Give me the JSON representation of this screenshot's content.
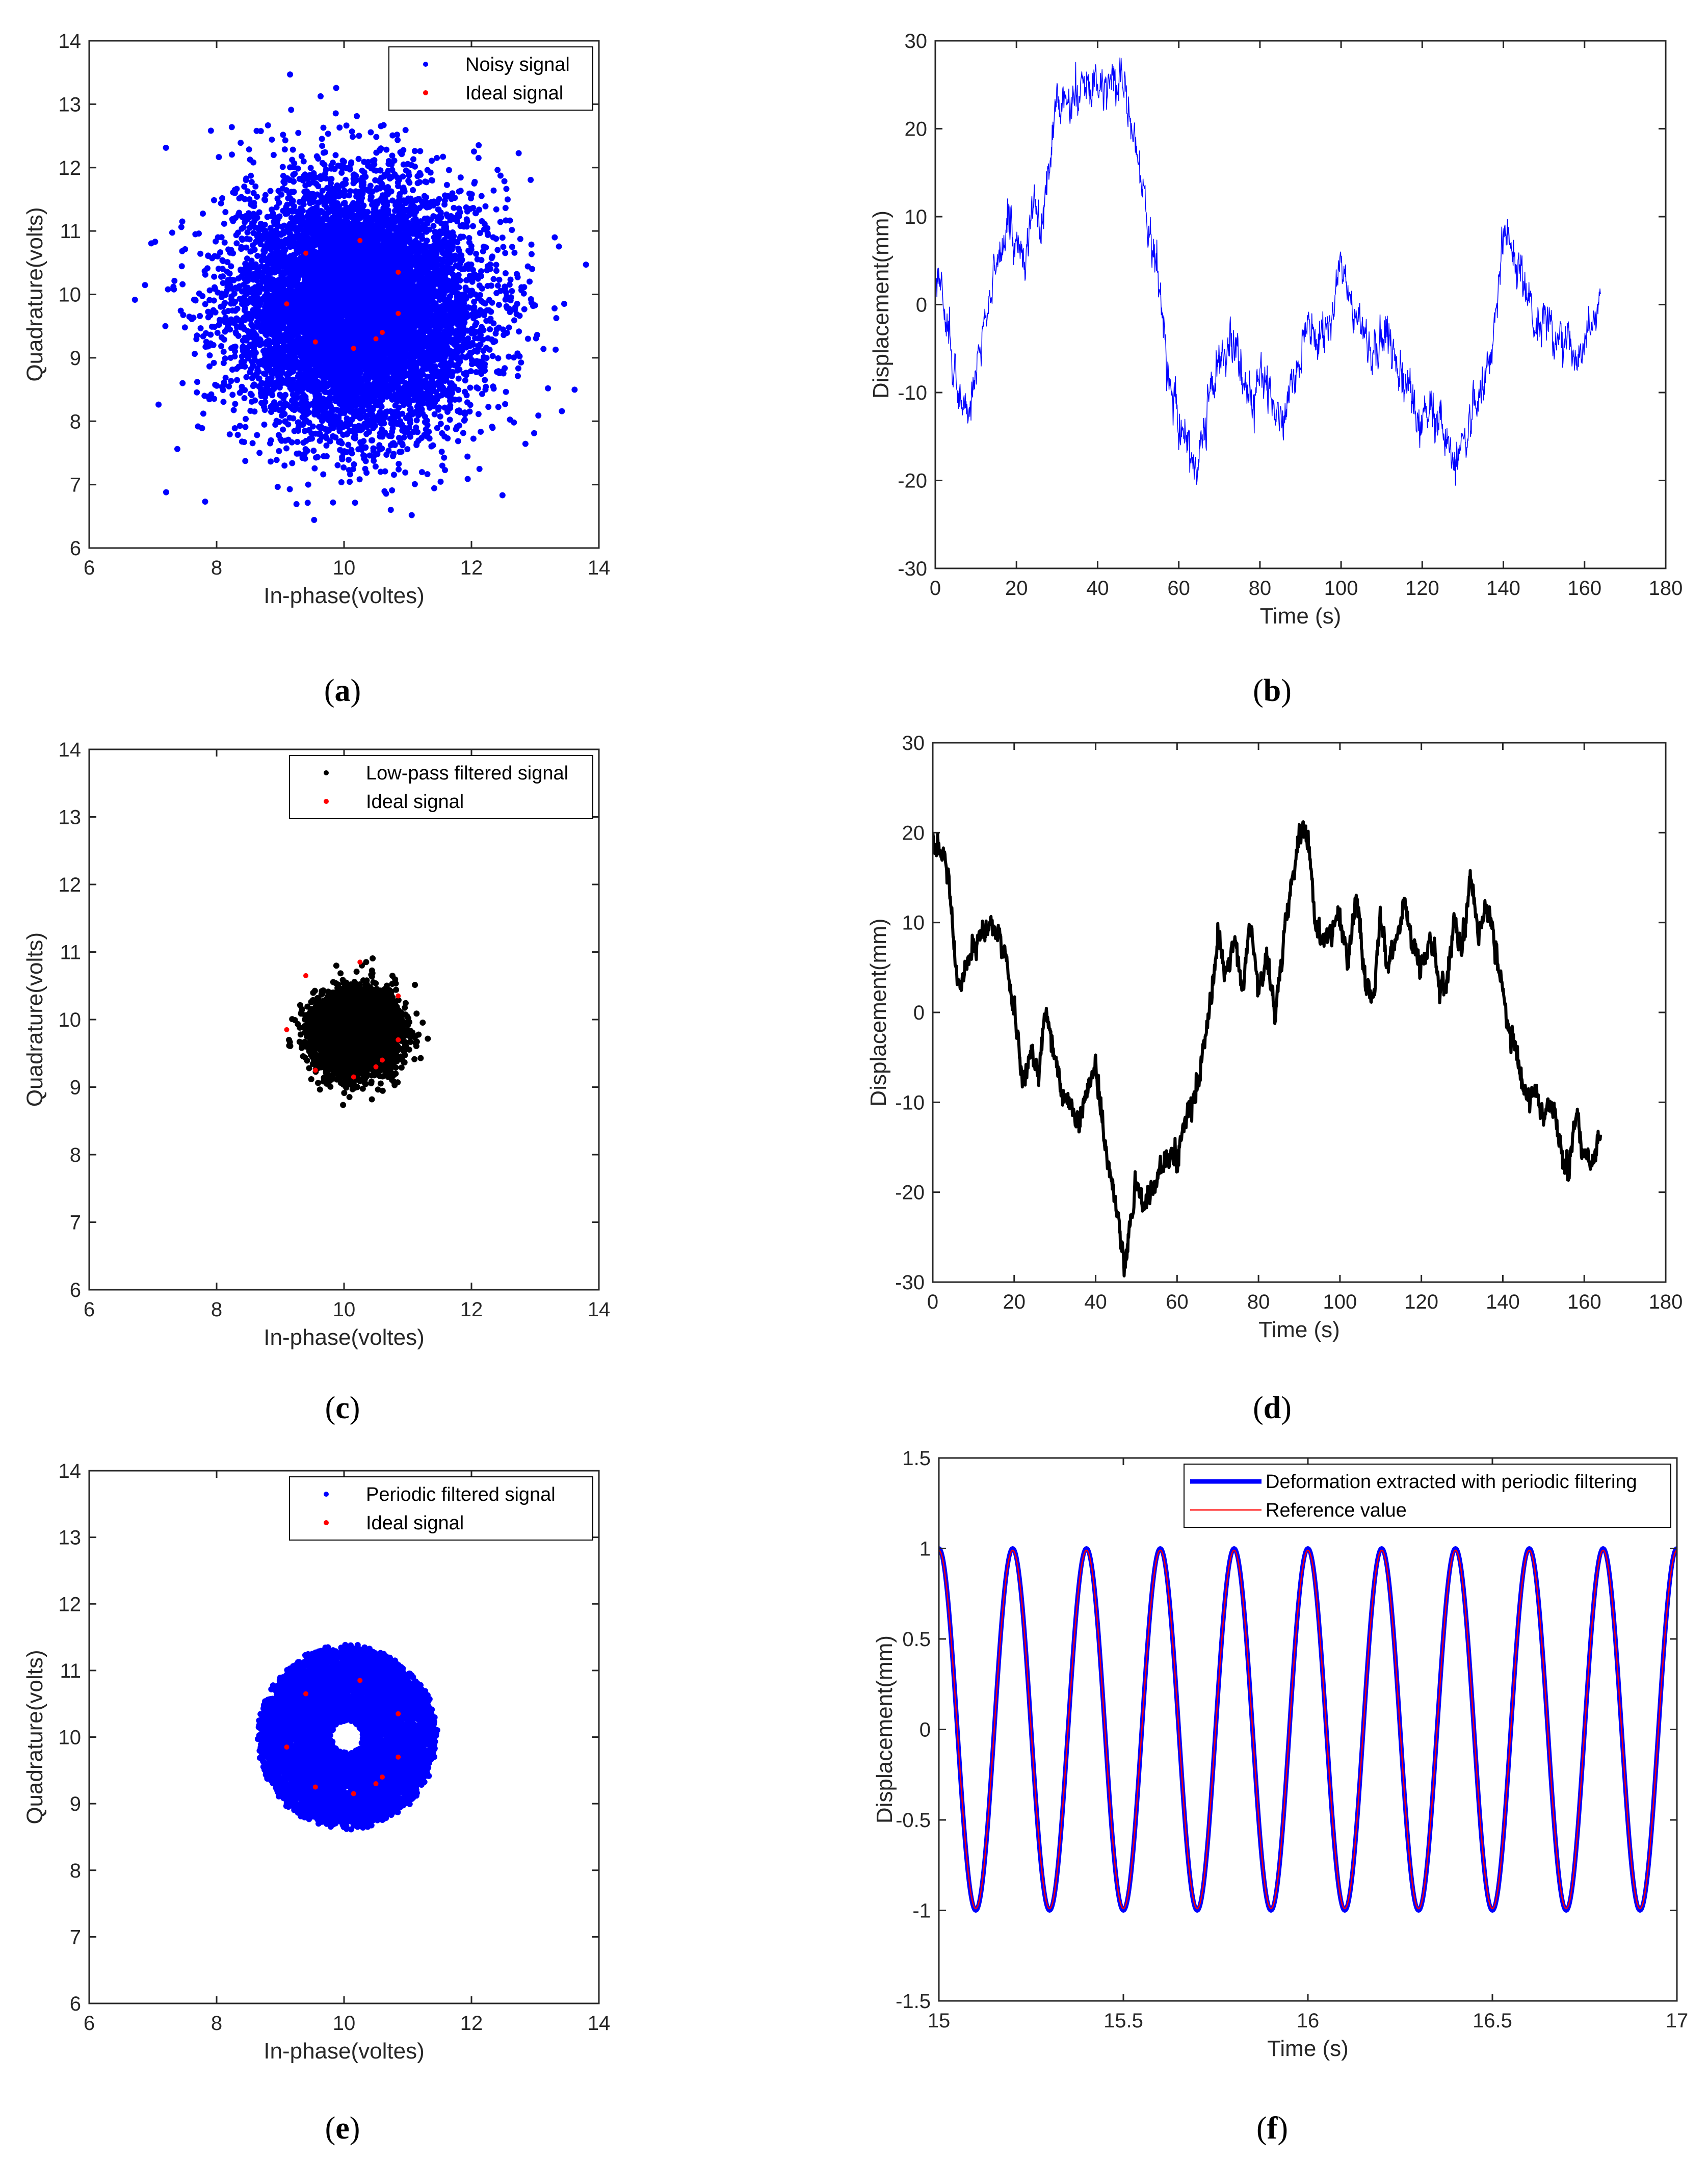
{
  "colors": {
    "blue": "#0000ff",
    "red": "#ff0000",
    "black": "#000000",
    "axis": "#262626"
  },
  "chart_data": [
    {
      "id": "a",
      "caption": "a",
      "type": "scatter",
      "title": "",
      "xlabel": "In-phase(voltes)",
      "ylabel": "Quadrature(volts)",
      "xlim": [
        6,
        14
      ],
      "ylim": [
        6,
        14
      ],
      "xticks": [
        "6",
        "8",
        "10",
        "12",
        "14"
      ],
      "yticks": [
        "6",
        "7",
        "8",
        "9",
        "10",
        "11",
        "12",
        "13",
        "14"
      ],
      "legend_position": "top-right",
      "series": [
        {
          "name": "Noisy signal",
          "color": "#0000ff",
          "distribution": "gaussian cloud",
          "center": [
            10.2,
            9.8
          ],
          "std": [
            0.95,
            0.95
          ],
          "count": 9000
        },
        {
          "name": "Ideal signal",
          "color": "#ff0000",
          "points": [
            [
              9.4,
              10.65
            ],
            [
              10.25,
              10.85
            ],
            [
              10.85,
              10.35
            ],
            [
              9.1,
              9.85
            ],
            [
              10.85,
              9.7
            ],
            [
              9.55,
              9.25
            ],
            [
              10.15,
              9.15
            ],
            [
              10.5,
              9.3
            ],
            [
              10.6,
              9.4
            ]
          ]
        }
      ]
    },
    {
      "id": "b",
      "caption": "b",
      "type": "line",
      "title": "",
      "xlabel": "Time (s)",
      "ylabel": "Displacement(mm)",
      "xlim": [
        0,
        180
      ],
      "ylim": [
        -30,
        30
      ],
      "xticks": [
        "0",
        "20",
        "40",
        "60",
        "80",
        "100",
        "120",
        "140",
        "160",
        "180"
      ],
      "yticks": [
        "-30",
        "-20",
        "-10",
        "0",
        "10",
        "20",
        "30"
      ],
      "legend_position": "none",
      "series": [
        {
          "name": "Displacement",
          "color": "#0000ff",
          "line_width": 1.5,
          "noise": 1.6,
          "x": [
            0,
            3,
            6,
            8,
            10,
            12,
            14,
            16,
            18,
            20,
            22,
            24,
            26,
            28,
            30,
            33,
            36,
            40,
            44,
            47,
            50,
            52,
            54,
            56,
            58,
            60,
            62,
            64,
            66,
            68,
            70,
            72,
            74,
            76,
            78,
            80,
            83,
            86,
            88,
            90,
            92,
            94,
            96,
            98,
            100,
            103,
            106,
            108,
            110,
            113,
            116,
            118,
            120,
            122,
            124,
            126,
            128,
            131,
            134,
            137,
            140,
            142,
            144,
            146,
            148,
            150,
            152,
            154,
            156,
            158,
            160,
            162,
            164
          ],
          "y": [
            5,
            -3,
            -11,
            -13,
            -7,
            -2,
            2,
            5,
            9,
            7,
            4,
            12,
            7,
            16,
            24,
            23,
            25,
            26,
            26,
            24,
            16,
            10,
            5,
            -2,
            -10,
            -14,
            -17,
            -18,
            -15,
            -10,
            -7,
            -5,
            -4,
            -9,
            -10,
            -7,
            -11,
            -14,
            -8,
            -6,
            -2,
            -4,
            -3,
            -1,
            6,
            -2,
            -3,
            -7,
            -4,
            -5,
            -9,
            -10,
            -11,
            -12,
            -13,
            -16,
            -19,
            -14,
            -11,
            -6,
            8,
            7,
            4,
            0,
            -3,
            -2,
            -3,
            -5,
            -3,
            -6,
            -5,
            -2,
            0
          ]
        }
      ]
    },
    {
      "id": "c",
      "caption": "c",
      "type": "scatter",
      "title": "",
      "xlabel": "In-phase(voltes)",
      "ylabel": "Quadrature(volts)",
      "xlim": [
        6,
        14
      ],
      "ylim": [
        6,
        14
      ],
      "xticks": [
        "6",
        "8",
        "10",
        "12",
        "14"
      ],
      "yticks": [
        "6",
        "7",
        "8",
        "9",
        "10",
        "11",
        "12",
        "13",
        "14"
      ],
      "legend_position": "top-right",
      "series": [
        {
          "name": "Low-pass filtered signal",
          "color": "#000000",
          "distribution": "gaussian cloud",
          "center": [
            10.2,
            9.8
          ],
          "std": [
            0.3,
            0.27
          ],
          "count": 7000
        },
        {
          "name": "Ideal signal",
          "color": "#ff0000",
          "points": [
            [
              9.4,
              10.65
            ],
            [
              10.25,
              10.85
            ],
            [
              10.85,
              10.35
            ],
            [
              9.1,
              9.85
            ],
            [
              10.85,
              9.7
            ],
            [
              9.55,
              9.25
            ],
            [
              10.15,
              9.15
            ],
            [
              10.5,
              9.3
            ],
            [
              10.6,
              9.4
            ]
          ]
        }
      ]
    },
    {
      "id": "d",
      "caption": "d",
      "type": "line",
      "title": "",
      "xlabel": "Time (s)",
      "ylabel": "Displacement(mm)",
      "xlim": [
        0,
        180
      ],
      "ylim": [
        -30,
        30
      ],
      "xticks": [
        "0",
        "20",
        "40",
        "60",
        "80",
        "100",
        "120",
        "140",
        "160",
        "180"
      ],
      "yticks": [
        "-30",
        "-20",
        "-10",
        "0",
        "10",
        "20",
        "30"
      ],
      "legend_position": "none",
      "series": [
        {
          "name": "Displacement",
          "color": "#000000",
          "line_width": 6,
          "noise": 0.9,
          "x": [
            0,
            2,
            4,
            6,
            8,
            10,
            12,
            14,
            16,
            18,
            20,
            22,
            24,
            26,
            28,
            30,
            32,
            34,
            36,
            38,
            40,
            42,
            44,
            46,
            47,
            48,
            50,
            52,
            54,
            56,
            58,
            60,
            62,
            64,
            66,
            68,
            70,
            72,
            74,
            76,
            78,
            80,
            82,
            84,
            86,
            88,
            90,
            92,
            94,
            96,
            98,
            100,
            102,
            104,
            106,
            108,
            110,
            112,
            114,
            116,
            118,
            120,
            122,
            124,
            126,
            128,
            130,
            132,
            134,
            136,
            138,
            140,
            142,
            144,
            146,
            148,
            150,
            152,
            154,
            156,
            158,
            160,
            162,
            164
          ],
          "y": [
            20,
            18,
            15,
            3,
            4,
            8,
            9,
            11,
            8,
            6,
            -1,
            -8,
            -5,
            -6,
            0,
            -5,
            -10,
            -10,
            -12,
            -8,
            -6,
            -14,
            -19,
            -24,
            -28,
            -25,
            -19,
            -22,
            -19,
            -17,
            -16,
            -16,
            -12,
            -10,
            -5,
            0,
            8,
            4,
            8,
            2,
            10,
            2,
            6,
            0,
            8,
            14,
            20,
            20,
            10,
            8,
            9,
            11,
            5,
            13,
            5,
            1,
            10,
            5,
            9,
            12,
            7,
            5,
            8,
            4,
            2,
            10,
            7,
            15,
            8,
            12,
            8,
            3,
            -3,
            -6,
            -10,
            -9,
            -12,
            -10,
            -14,
            -18,
            -12,
            -16,
            -17,
            -13
          ]
        }
      ]
    },
    {
      "id": "e",
      "caption": "e",
      "type": "scatter",
      "title": "",
      "xlabel": "In-phase(voltes)",
      "ylabel": "Quadrature(volts)",
      "xlim": [
        6,
        14
      ],
      "ylim": [
        6,
        14
      ],
      "xticks": [
        "6",
        "8",
        "10",
        "12",
        "14"
      ],
      "yticks": [
        "6",
        "7",
        "8",
        "9",
        "10",
        "11",
        "12",
        "13",
        "14"
      ],
      "legend_position": "top-right",
      "series": [
        {
          "name": "Periodic filtered signal",
          "color": "#0000ff",
          "distribution": "ring",
          "center": [
            10.05,
            10.0
          ],
          "radius_range": [
            0.25,
            1.4
          ],
          "count": 7000
        },
        {
          "name": "Ideal signal",
          "color": "#ff0000",
          "points": [
            [
              9.4,
              10.65
            ],
            [
              10.25,
              10.85
            ],
            [
              10.85,
              10.35
            ],
            [
              9.1,
              9.85
            ],
            [
              10.85,
              9.7
            ],
            [
              9.55,
              9.25
            ],
            [
              10.15,
              9.15
            ],
            [
              10.5,
              9.3
            ],
            [
              10.6,
              9.4
            ]
          ]
        }
      ]
    },
    {
      "id": "f",
      "caption": "f",
      "type": "line",
      "title": "",
      "xlabel": "Time (s)",
      "ylabel": "Displacement(mm)",
      "xlim": [
        15,
        17
      ],
      "ylim": [
        -1.5,
        1.5
      ],
      "xticks": [
        "15",
        "15.5",
        "16",
        "16.5",
        "17"
      ],
      "yticks": [
        "-1.5",
        "-1",
        "-0.5",
        "0",
        "0.5",
        "1",
        "1.5"
      ],
      "legend_position": "top-right",
      "series": [
        {
          "name": "Deformation extracted with periodic filtering",
          "color": "#0000ff",
          "line_width": 9,
          "function": "cos",
          "frequency_hz": 5,
          "amplitude": 1.0,
          "phase_deg": 0
        },
        {
          "name": "Reference value",
          "color": "#ff0000",
          "line_width": 2.5,
          "function": "cos",
          "frequency_hz": 5,
          "amplitude": 0.99,
          "phase_deg": 0
        }
      ]
    }
  ]
}
